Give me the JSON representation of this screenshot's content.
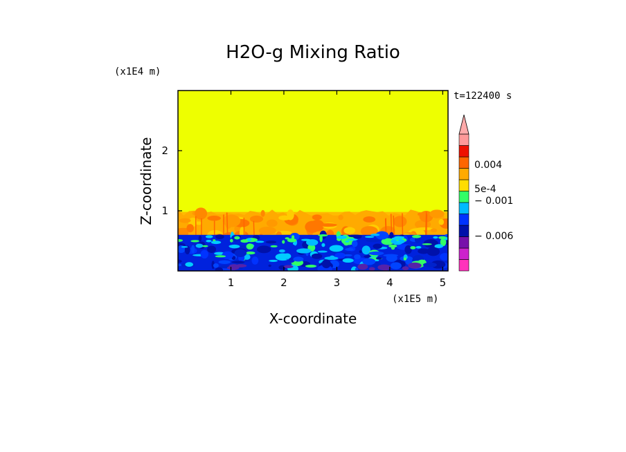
{
  "chart_data": {
    "type": "heatmap",
    "title": "H2O-g Mixing Ratio",
    "time_label": "t=122400 s",
    "xlabel": "X-coordinate",
    "ylabel": "Z-coordinate",
    "x_unit": "(x1E5 m)",
    "z_unit": "(x1E4 m)",
    "xlim": [
      0,
      5.1
    ],
    "zlim": [
      0,
      3.0
    ],
    "x_ticks": [
      {
        "value": 1,
        "label": "1"
      },
      {
        "value": 2,
        "label": "2"
      },
      {
        "value": 3,
        "label": "3"
      },
      {
        "value": 4,
        "label": "4"
      },
      {
        "value": 5,
        "label": "5"
      }
    ],
    "z_ticks": [
      {
        "value": 1,
        "label": "1"
      },
      {
        "value": 2,
        "label": "2"
      }
    ],
    "field_regions": [
      {
        "name": "upper-layer",
        "z_from": 1.0,
        "z_to": 3.0,
        "value_level": "near-zero",
        "color": "#eeff00"
      },
      {
        "name": "mixing-layer",
        "z_from": 0.6,
        "z_to": 1.05,
        "value_level": "positive",
        "color": "#ff9900"
      },
      {
        "name": "boundary-layer",
        "z_from": 0.0,
        "z_to": 0.6,
        "value_level": "negative",
        "color": "#0022dd"
      }
    ],
    "colorbar": {
      "colors": [
        "#ff33bb",
        "#cc22cc",
        "#7711aa",
        "#0011aa",
        "#0033ff",
        "#00bbff",
        "#33ff66",
        "#ffdd00",
        "#ffaa00",
        "#ff6600",
        "#ee1100",
        "#ff9999"
      ],
      "labels": [
        {
          "value": "0.004",
          "label": "0.004"
        },
        {
          "value": "5e-4",
          "label": "5e-4"
        },
        {
          "value": "-0.001",
          "label": "− 0.001"
        },
        {
          "value": "-0.006",
          "label": "− 0.006"
        }
      ]
    }
  }
}
